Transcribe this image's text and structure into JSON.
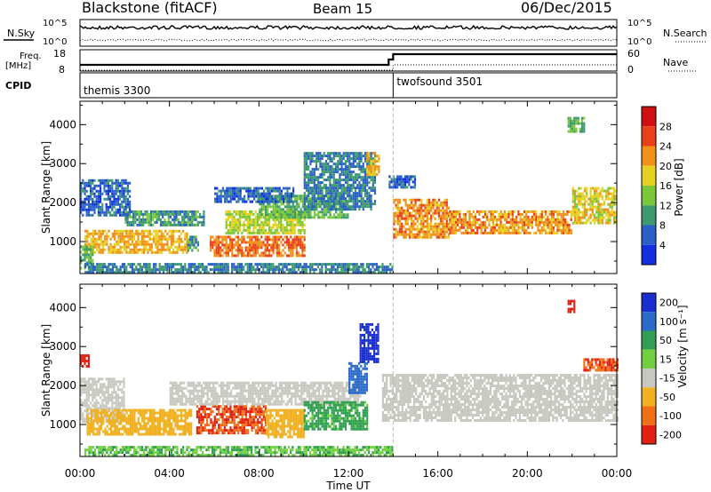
{
  "header": {
    "title": "Blackstone (fitACF)",
    "beam": "Beam 15",
    "date": "06/Dec/2015"
  },
  "summary_panels": {
    "nsky_label": "N.Sky",
    "nsearch_label": "N.Search",
    "freq_label_line1": "Freq.",
    "freq_label_line2": "[MHz]",
    "nave_label": "Nave",
    "cpid_label": "CPID",
    "noise_ticks": [
      "10^5",
      "10^0"
    ],
    "freq_ticks": [
      "18",
      "8"
    ],
    "nave_ticks": [
      "60",
      "0"
    ],
    "cpid_segments": [
      {
        "name": "themis 3300",
        "start_hour": 0,
        "end_hour": 14
      },
      {
        "name": "twofsound 3501",
        "start_hour": 14,
        "end_hour": 24
      }
    ]
  },
  "x_axis": {
    "label": "Time UT",
    "ticks": [
      "00:00",
      "04:00",
      "08:00",
      "12:00",
      "16:00",
      "20:00",
      "00:00"
    ]
  },
  "chart_data": [
    {
      "type": "heatmap",
      "name": "power",
      "ylabel": "Slant Range [km]",
      "yticks": [
        "1000",
        "2000",
        "3000",
        "4000"
      ],
      "xlim_hours": [
        0,
        24
      ],
      "ylim_km": [
        180,
        4600
      ],
      "colorbar_label": "Power [dB]",
      "colorbar_ticks": [
        "4",
        "8",
        "12",
        "16",
        "20",
        "24",
        "28"
      ],
      "colorbar_colors": [
        "#1030e0",
        "#2a60c8",
        "#3c9a6e",
        "#7ac83a",
        "#e6d020",
        "#f09018",
        "#e84018",
        "#d01010"
      ],
      "colorbar_range": [
        0,
        32
      ],
      "regions": [
        {
          "t0": 0.0,
          "t1": 2.2,
          "r0": 1700,
          "r1": 2600,
          "value": 6
        },
        {
          "t0": 0.2,
          "t1": 4.8,
          "r0": 700,
          "r1": 1300,
          "value": 20
        },
        {
          "t0": 4.8,
          "t1": 5.3,
          "r0": 750,
          "r1": 1150,
          "value": 10
        },
        {
          "t0": 0.0,
          "t1": 0.6,
          "r0": 300,
          "r1": 900,
          "value": 12
        },
        {
          "t0": 2.0,
          "t1": 5.5,
          "r0": 1400,
          "r1": 1800,
          "value": 10
        },
        {
          "t0": 5.8,
          "t1": 10.0,
          "r0": 650,
          "r1": 1150,
          "value": 24
        },
        {
          "t0": 6.5,
          "t1": 10.0,
          "r0": 1200,
          "r1": 1800,
          "value": 16
        },
        {
          "t0": 8.0,
          "t1": 12.0,
          "r0": 1600,
          "r1": 2200,
          "value": 12
        },
        {
          "t0": 6.0,
          "t1": 9.5,
          "r0": 2000,
          "r1": 2400,
          "value": 6
        },
        {
          "t0": 10.0,
          "t1": 13.2,
          "r0": 1800,
          "r1": 3300,
          "value": 8
        },
        {
          "t0": 12.8,
          "t1": 13.4,
          "r0": 2700,
          "r1": 3300,
          "value": 20
        },
        {
          "t0": 14.0,
          "t1": 16.5,
          "r0": 1100,
          "r1": 2100,
          "value": 22
        },
        {
          "t0": 16.5,
          "t1": 22.0,
          "r0": 1200,
          "r1": 1800,
          "value": 22
        },
        {
          "t0": 22.0,
          "t1": 24.0,
          "r0": 1500,
          "r1": 2400,
          "value": 18
        },
        {
          "t0": 13.8,
          "t1": 15.0,
          "r0": 2400,
          "r1": 2700,
          "value": 6
        },
        {
          "t0": 0.2,
          "t1": 14.0,
          "r0": 200,
          "r1": 450,
          "value": 8
        },
        {
          "t0": 21.8,
          "t1": 22.5,
          "r0": 3800,
          "r1": 4200,
          "value": 12
        }
      ]
    },
    {
      "type": "heatmap",
      "name": "velocity",
      "ylabel": "Slant Range [km]",
      "yticks": [
        "1000",
        "2000",
        "3000",
        "4000"
      ],
      "xlim_hours": [
        0,
        24
      ],
      "ylim_km": [
        180,
        4600
      ],
      "colorbar_label": "Velocity [m s⁻¹]",
      "colorbar_ticks": [
        "200",
        "100",
        "50",
        "15",
        "-15",
        "-50",
        "-100",
        "-200"
      ],
      "colorbar_colors": [
        "#1a2ed0",
        "#2a6ac8",
        "#30a050",
        "#70d040",
        "#c8c8c0",
        "#f0b020",
        "#f07018",
        "#e02010"
      ],
      "regions": [
        {
          "t0": 0.0,
          "t1": 2.0,
          "r0": 1100,
          "r1": 2200,
          "value": 0
        },
        {
          "t0": 0.3,
          "t1": 5.0,
          "r0": 750,
          "r1": 1400,
          "value": -50
        },
        {
          "t0": 5.2,
          "t1": 8.3,
          "r0": 800,
          "r1": 1500,
          "value": -150
        },
        {
          "t0": 8.3,
          "t1": 10.0,
          "r0": 700,
          "r1": 1400,
          "value": -60
        },
        {
          "t0": 4.0,
          "t1": 12.5,
          "r0": 1500,
          "r1": 2100,
          "value": 0
        },
        {
          "t0": 10.0,
          "t1": 12.8,
          "r0": 900,
          "r1": 1600,
          "value": 40
        },
        {
          "t0": 12.5,
          "t1": 13.3,
          "r0": 2600,
          "r1": 3600,
          "value": 200
        },
        {
          "t0": 12.0,
          "t1": 12.8,
          "r0": 1800,
          "r1": 2600,
          "value": 120
        },
        {
          "t0": 13.5,
          "t1": 24.0,
          "r0": 1100,
          "r1": 2300,
          "value": 0
        },
        {
          "t0": 0.0,
          "t1": 0.4,
          "r0": 2500,
          "r1": 2800,
          "value": -200
        },
        {
          "t0": 0.2,
          "t1": 14.0,
          "r0": 200,
          "r1": 450,
          "value": 30
        },
        {
          "t0": 22.5,
          "t1": 24.0,
          "r0": 2400,
          "r1": 2700,
          "value": -150
        },
        {
          "t0": 21.8,
          "t1": 22.1,
          "r0": 3900,
          "r1": 4200,
          "value": -200
        }
      ]
    }
  ]
}
